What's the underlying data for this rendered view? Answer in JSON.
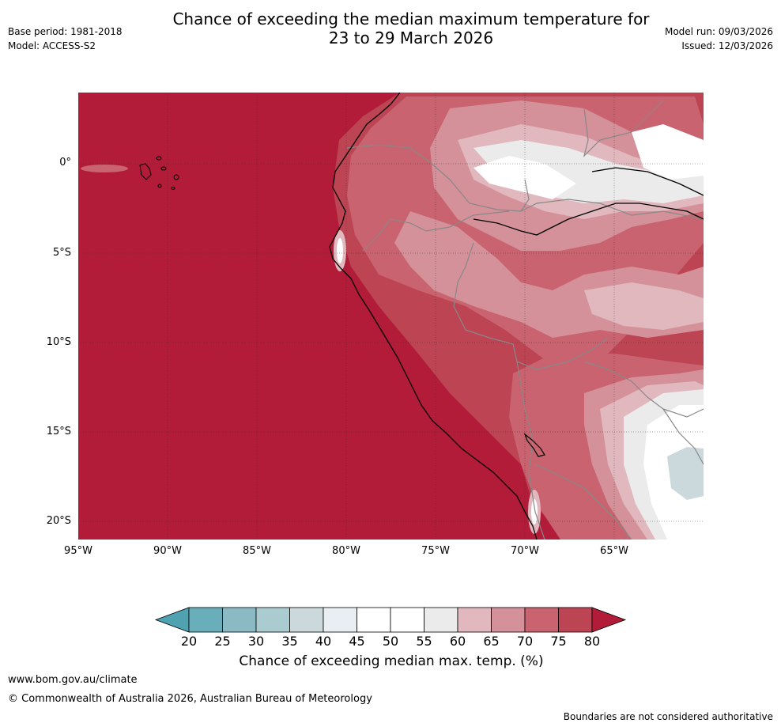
{
  "header": {
    "title_line1": "Chance of exceeding the median maximum temperature for",
    "title_line2": "23 to 29 March 2026",
    "base_period": "Base period: 1981-2018",
    "model": "Model: ACCESS-S2",
    "model_run": "Model run: 09/03/2026",
    "issued": "Issued: 12/03/2026"
  },
  "map": {
    "lat_labels": [
      "0°",
      "5°S",
      "10°S",
      "15°S",
      "20°S"
    ],
    "lon_labels": [
      "95°W",
      "90°W",
      "85°W",
      "80°W",
      "75°W",
      "70°W",
      "65°W"
    ]
  },
  "colorbar": {
    "ticks": [
      "20",
      "25",
      "30",
      "35",
      "40",
      "45",
      "50",
      "55",
      "60",
      "65",
      "70",
      "75",
      "80"
    ],
    "colors": [
      "#6aaeba",
      "#8bbac5",
      "#aacbd0",
      "#cbd9dc",
      "#e8eef1",
      "#ffffff",
      "#ffffff",
      "#ebebec",
      "#e0b8bd",
      "#d4919a",
      "#c8636f",
      "#bc4453",
      "#b21c38"
    ],
    "label": "Chance of exceeding median max. temp. (%)"
  },
  "footer": {
    "website": "www.bom.gov.au/climate",
    "copyright": "© Commonwealth of Australia 2026, Australian Bureau of Meteorology",
    "disclaimer": "Boundaries are not considered authoritative"
  }
}
